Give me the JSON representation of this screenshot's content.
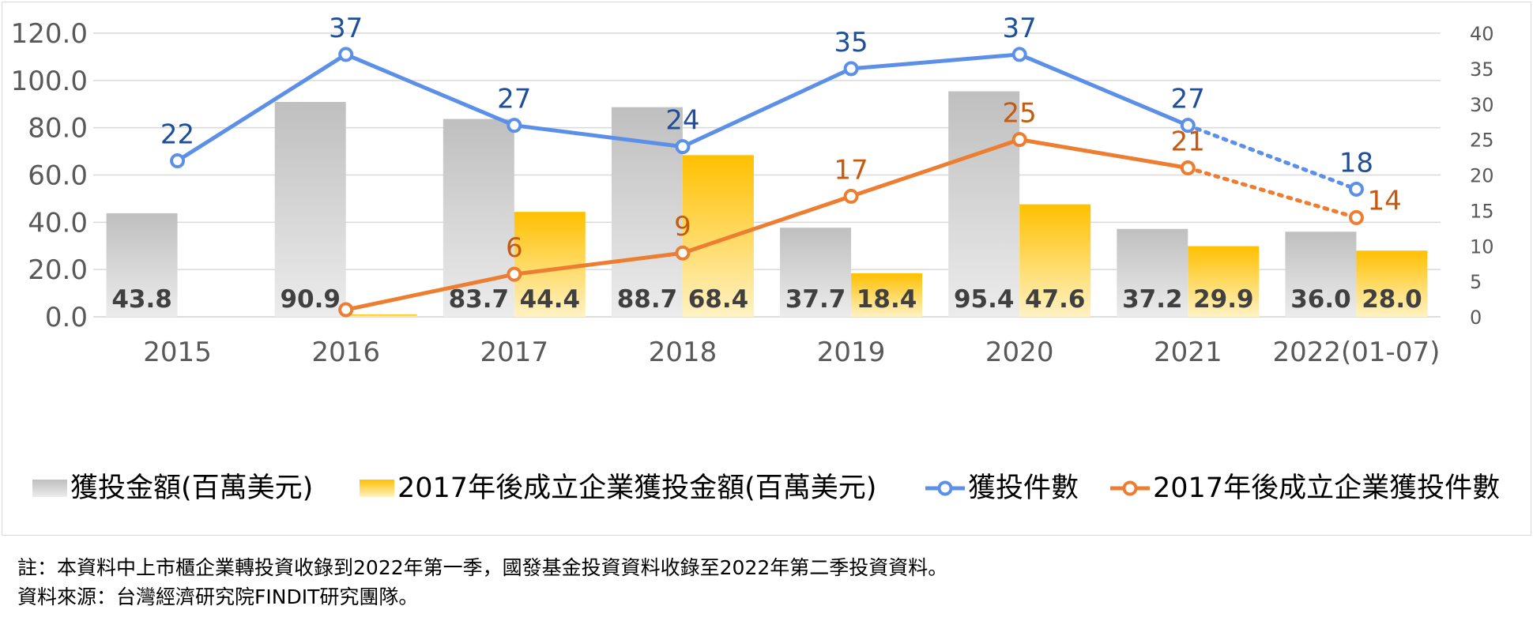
{
  "chart_data": {
    "type": "bar",
    "categories": [
      "2015",
      "2016",
      "2017",
      "2018",
      "2019",
      "2020",
      "2021",
      "2022(01-07)"
    ],
    "y_left": {
      "ylim": [
        0,
        120
      ],
      "ticks": [
        "0.0",
        "20.0",
        "40.0",
        "60.0",
        "80.0",
        "100.0",
        "120.0"
      ]
    },
    "y_right": {
      "ylim": [
        0,
        40
      ],
      "ticks": [
        "0",
        "5",
        "10",
        "15",
        "20",
        "25",
        "30",
        "35",
        "40"
      ]
    },
    "grid": true,
    "legend_position": "bottom",
    "series": [
      {
        "name": "獲投金額(百萬美元)",
        "kind": "bar",
        "axis": "left",
        "color_top": "#bfbfbf",
        "color_bottom": "#ececec",
        "values": [
          43.8,
          90.9,
          83.7,
          88.7,
          37.7,
          95.4,
          37.2,
          36.0
        ],
        "labels": [
          "43.8",
          "90.9",
          "83.7",
          "88.7",
          "37.7",
          "95.4",
          "37.2",
          "36.0"
        ]
      },
      {
        "name": "2017年後成立企業獲投金額(百萬美元)",
        "kind": "bar",
        "axis": "left",
        "color_top": "#ffc000",
        "color_bottom": "#fff2c4",
        "values": [
          null,
          1.0,
          44.4,
          68.4,
          18.4,
          47.6,
          29.9,
          28.0
        ],
        "labels": [
          "",
          "",
          "44.4",
          "68.4",
          "18.4",
          "47.6",
          "29.9",
          "28.0"
        ]
      },
      {
        "name": "獲投件數",
        "kind": "line",
        "axis": "right",
        "color": "#5b8fe8",
        "label_color": "#1f4e9a",
        "values": [
          22,
          37,
          27,
          24,
          35,
          37,
          27,
          18
        ],
        "labels": [
          "22",
          "37",
          "27",
          "24",
          "35",
          "37",
          "27",
          "18"
        ],
        "dotted_last_segment": true
      },
      {
        "name": "2017年後成立企業獲投件數",
        "kind": "line",
        "axis": "right",
        "color": "#ed7d31",
        "label_color": "#c55a11",
        "values": [
          null,
          1,
          6,
          9,
          17,
          25,
          21,
          14
        ],
        "labels": [
          "",
          "",
          "6",
          "9",
          "17",
          "25",
          "21",
          "14"
        ],
        "dotted_last_segment": true
      }
    ]
  },
  "notes": {
    "line1": "註：本資料中上市櫃企業轉投資收錄到2022年第一季，國發基金投資資料收錄至2022年第二季投資資料。",
    "line2": "資料來源：台灣經濟研究院FINDIT研究團隊。"
  }
}
